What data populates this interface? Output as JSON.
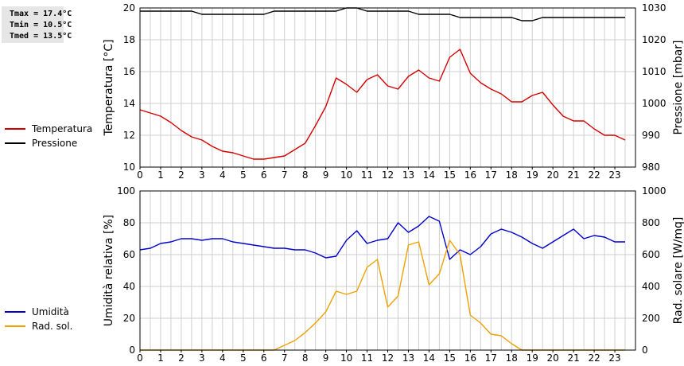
{
  "stats": {
    "tmax": "Tmax = 17.4°C",
    "tmin": "Tmin = 10.5°C",
    "tmed": "Tmed = 13.5°C"
  },
  "legend_top": [
    {
      "label": "Temperatura",
      "color": "#d40000"
    },
    {
      "label": "Pressione",
      "color": "#000000"
    }
  ],
  "legend_bottom": [
    {
      "label": "Umidità",
      "color": "#0000cc"
    },
    {
      "label": "Rad. sol.",
      "color": "#f0a000"
    }
  ],
  "chart_data": [
    {
      "type": "line",
      "xlim": [
        0,
        24
      ],
      "xticks": [
        "0",
        "1",
        "2",
        "3",
        "4",
        "5",
        "6",
        "7",
        "8",
        "9",
        "10",
        "11",
        "12",
        "13",
        "14",
        "15",
        "16",
        "17",
        "18",
        "19",
        "20",
        "21",
        "22",
        "23"
      ],
      "ylabel": "Temperatura [°C]",
      "ylim": [
        10,
        20
      ],
      "yticks": [
        "10",
        "12",
        "14",
        "16",
        "18",
        "20"
      ],
      "y2label": "Pressione [mbar]",
      "y2lim": [
        980,
        1030
      ],
      "y2ticks": [
        "980",
        "990",
        "1000",
        "1010",
        "1020",
        "1030"
      ],
      "grid": true,
      "series": [
        {
          "name": "Temperatura",
          "axis": "left",
          "color": "#d40000",
          "x": [
            0,
            0.5,
            1,
            1.5,
            2,
            2.5,
            3,
            3.5,
            4,
            4.5,
            5,
            5.5,
            6,
            6.5,
            7,
            7.5,
            8,
            8.5,
            9,
            9.5,
            10,
            10.5,
            11,
            11.5,
            12,
            12.5,
            13,
            13.5,
            14,
            14.5,
            15,
            15.5,
            16,
            16.5,
            17,
            17.5,
            18,
            18.5,
            19,
            19.5,
            20,
            20.5,
            21,
            21.5,
            22,
            22.5,
            23,
            23.5
          ],
          "y": [
            13.6,
            13.4,
            13.2,
            12.8,
            12.3,
            11.9,
            11.7,
            11.3,
            11.0,
            10.9,
            10.7,
            10.5,
            10.5,
            10.6,
            10.7,
            11.1,
            11.5,
            12.6,
            13.8,
            15.6,
            15.2,
            14.7,
            15.5,
            15.8,
            15.1,
            14.9,
            15.7,
            16.1,
            15.6,
            15.4,
            16.9,
            17.4,
            15.9,
            15.3,
            14.9,
            14.6,
            14.1,
            14.1,
            14.5,
            14.7,
            13.9,
            13.2,
            12.9,
            12.9,
            12.4,
            12.0,
            12.0,
            11.7
          ]
        },
        {
          "name": "Pressione",
          "axis": "right",
          "color": "#000000",
          "x": [
            0,
            0.5,
            1,
            1.5,
            2,
            2.5,
            3,
            3.5,
            4,
            4.5,
            5,
            5.5,
            6,
            6.5,
            7,
            7.5,
            8,
            8.5,
            9,
            9.5,
            10,
            10.5,
            11,
            11.5,
            12,
            12.5,
            13,
            13.5,
            14,
            14.5,
            15,
            15.5,
            16,
            16.5,
            17,
            17.5,
            18,
            18.5,
            19,
            19.5,
            20,
            20.5,
            21,
            21.5,
            22,
            22.5,
            23,
            23.5
          ],
          "y": [
            1029,
            1029,
            1029,
            1029,
            1029,
            1029,
            1028,
            1028,
            1028,
            1028,
            1028,
            1028,
            1028,
            1029,
            1029,
            1029,
            1029,
            1029,
            1029,
            1029,
            1030,
            1030,
            1029,
            1029,
            1029,
            1029,
            1029,
            1028,
            1028,
            1028,
            1028,
            1027,
            1027,
            1027,
            1027,
            1027,
            1027,
            1026,
            1026,
            1027,
            1027,
            1027,
            1027,
            1027,
            1027,
            1027,
            1027,
            1027
          ]
        }
      ]
    },
    {
      "type": "line",
      "xlim": [
        0,
        24
      ],
      "xticks": [
        "0",
        "1",
        "2",
        "3",
        "4",
        "5",
        "6",
        "7",
        "8",
        "9",
        "10",
        "11",
        "12",
        "13",
        "14",
        "15",
        "16",
        "17",
        "18",
        "19",
        "20",
        "21",
        "22",
        "23"
      ],
      "ylabel": "Umidità relativa [%]",
      "ylim": [
        0,
        100
      ],
      "yticks": [
        "0",
        "20",
        "40",
        "60",
        "80",
        "100"
      ],
      "y2label": "Rad. solare [W/mq]",
      "y2lim": [
        0,
        1000
      ],
      "y2ticks": [
        "0",
        "200",
        "400",
        "600",
        "800",
        "1000"
      ],
      "grid": true,
      "series": [
        {
          "name": "Umidità",
          "axis": "left",
          "color": "#0000cc",
          "x": [
            0,
            0.5,
            1,
            1.5,
            2,
            2.5,
            3,
            3.5,
            4,
            4.5,
            5,
            5.5,
            6,
            6.5,
            7,
            7.5,
            8,
            8.5,
            9,
            9.5,
            10,
            10.5,
            11,
            11.5,
            12,
            12.5,
            13,
            13.5,
            14,
            14.5,
            15,
            15.5,
            16,
            16.5,
            17,
            17.5,
            18,
            18.5,
            19,
            19.5,
            20,
            20.5,
            21,
            21.5,
            22,
            22.5,
            23,
            23.5
          ],
          "y": [
            63,
            64,
            67,
            68,
            70,
            70,
            69,
            70,
            70,
            68,
            67,
            66,
            65,
            64,
            64,
            63,
            63,
            61,
            58,
            59,
            69,
            75,
            67,
            69,
            70,
            80,
            74,
            78,
            84,
            81,
            57,
            63,
            60,
            65,
            73,
            76,
            74,
            71,
            67,
            64,
            68,
            72,
            76,
            70,
            72,
            71,
            68,
            68
          ]
        },
        {
          "name": "Rad. sol.",
          "axis": "right",
          "color": "#f0a000",
          "x": [
            0,
            0.5,
            1,
            1.5,
            2,
            2.5,
            3,
            3.5,
            4,
            4.5,
            5,
            5.5,
            6,
            6.5,
            7,
            7.5,
            8,
            8.5,
            9,
            9.5,
            10,
            10.5,
            11,
            11.5,
            12,
            12.5,
            13,
            13.5,
            14,
            14.5,
            15,
            15.5,
            16,
            16.5,
            17,
            17.5,
            18,
            18.5,
            19,
            19.5,
            20,
            20.5,
            21,
            21.5,
            22,
            22.5,
            23,
            23.5
          ],
          "y": [
            0,
            0,
            0,
            0,
            0,
            0,
            0,
            0,
            0,
            0,
            0,
            0,
            0,
            0,
            30,
            60,
            110,
            170,
            240,
            370,
            350,
            370,
            520,
            570,
            270,
            340,
            660,
            680,
            410,
            480,
            690,
            600,
            220,
            170,
            100,
            90,
            40,
            0,
            0,
            0,
            0,
            0,
            0,
            0,
            0,
            0,
            0,
            0
          ]
        }
      ]
    }
  ]
}
